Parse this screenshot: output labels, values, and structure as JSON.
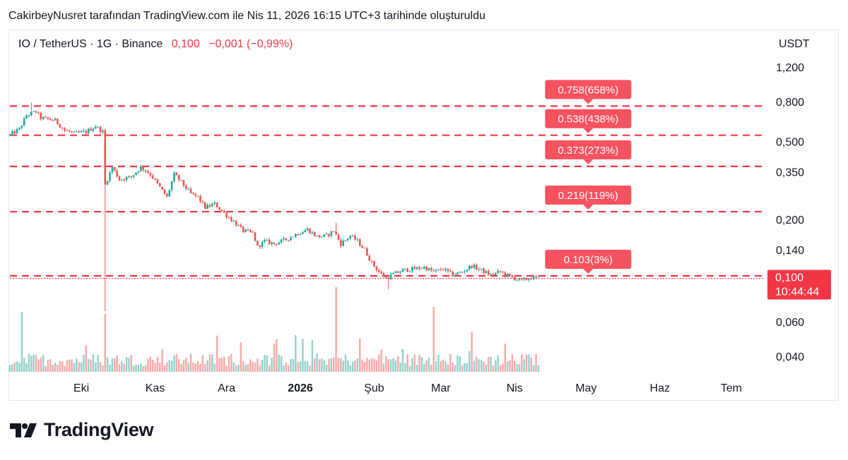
{
  "header": {
    "title": "CakirbeyNusret tarafından TradingView.com ile Nis 11, 2026 16:15 UTC+3 tarihinde oluşturuldu"
  },
  "legend": {
    "symbol": "IO / TetherUS · 1G · Binance",
    "price": "0,100",
    "change": "−0,001 (−0,99%)"
  },
  "axis": {
    "unit": "USDT"
  },
  "current": {
    "price_label": "0,100",
    "countdown": "10:44:44"
  },
  "footer": {
    "brand": "TradingView"
  },
  "colors": {
    "up": "#26a69a",
    "down": "#ef5350",
    "target": "#f23645",
    "label_bg": "#f7525f"
  },
  "chart_data": {
    "type": "candlestick",
    "scale": "log",
    "y_ticks": [
      {
        "label": "1,200",
        "value": 1.2
      },
      {
        "label": "0,800",
        "value": 0.8
      },
      {
        "label": "0,500",
        "value": 0.5
      },
      {
        "label": "0,350",
        "value": 0.35
      },
      {
        "label": "0,200",
        "value": 0.2
      },
      {
        "label": "0,140",
        "value": 0.14
      },
      {
        "label": "0,060",
        "value": 0.06
      },
      {
        "label": "0,040",
        "value": 0.04
      }
    ],
    "x_ticks": [
      {
        "label": "Eki",
        "date": "2025-10-01",
        "bold": false
      },
      {
        "label": "Kas",
        "date": "2025-11-01",
        "bold": false
      },
      {
        "label": "Ara",
        "date": "2025-12-01",
        "bold": false
      },
      {
        "label": "2026",
        "date": "2026-01-01",
        "bold": true
      },
      {
        "label": "Şub",
        "date": "2026-02-01",
        "bold": false
      },
      {
        "label": "Mar",
        "date": "2026-03-01",
        "bold": false
      },
      {
        "label": "Nis",
        "date": "2026-04-01",
        "bold": false
      },
      {
        "label": "May",
        "date": "2026-05-01",
        "bold": false
      },
      {
        "label": "Haz",
        "date": "2026-06-01",
        "bold": false
      },
      {
        "label": "Tem",
        "date": "2026-07-01",
        "bold": false
      }
    ],
    "x_range": [
      "2025-09-01",
      "2026-07-15"
    ],
    "targets": [
      {
        "label": "0.758(658%)",
        "value": 0.758
      },
      {
        "label": "0.538(438%)",
        "value": 0.538
      },
      {
        "label": "0.373(273%)",
        "value": 0.373
      },
      {
        "label": "0.219(119%)",
        "value": 0.219
      },
      {
        "label": "0.103(3%)",
        "value": 0.103
      }
    ],
    "price_path": [
      {
        "date": "2025-09-01",
        "close": 0.54
      },
      {
        "date": "2025-09-05",
        "close": 0.58
      },
      {
        "date": "2025-09-08",
        "close": 0.68
      },
      {
        "date": "2025-09-12",
        "close": 0.71
      },
      {
        "date": "2025-09-14",
        "close": 0.66
      },
      {
        "date": "2025-09-20",
        "close": 0.64
      },
      {
        "date": "2025-09-24",
        "close": 0.57
      },
      {
        "date": "2025-09-28",
        "close": 0.55
      },
      {
        "date": "2025-10-03",
        "close": 0.56
      },
      {
        "date": "2025-10-07",
        "close": 0.6
      },
      {
        "date": "2025-10-10",
        "close": 0.56
      },
      {
        "date": "2025-10-11",
        "close": 0.3
      },
      {
        "date": "2025-10-14",
        "close": 0.37
      },
      {
        "date": "2025-10-17",
        "close": 0.32
      },
      {
        "date": "2025-10-22",
        "close": 0.33
      },
      {
        "date": "2025-10-26",
        "close": 0.37
      },
      {
        "date": "2025-10-30",
        "close": 0.34
      },
      {
        "date": "2025-11-04",
        "close": 0.28
      },
      {
        "date": "2025-11-06",
        "close": 0.26
      },
      {
        "date": "2025-11-09",
        "close": 0.34
      },
      {
        "date": "2025-11-12",
        "close": 0.31
      },
      {
        "date": "2025-11-16",
        "close": 0.27
      },
      {
        "date": "2025-11-19",
        "close": 0.26
      },
      {
        "date": "2025-11-22",
        "close": 0.23
      },
      {
        "date": "2025-11-26",
        "close": 0.24
      },
      {
        "date": "2025-11-30",
        "close": 0.215
      },
      {
        "date": "2025-12-04",
        "close": 0.195
      },
      {
        "date": "2025-12-08",
        "close": 0.175
      },
      {
        "date": "2025-12-12",
        "close": 0.17
      },
      {
        "date": "2025-12-14",
        "close": 0.145
      },
      {
        "date": "2025-12-17",
        "close": 0.155
      },
      {
        "date": "2025-12-21",
        "close": 0.15
      },
      {
        "date": "2025-12-26",
        "close": 0.158
      },
      {
        "date": "2025-12-31",
        "close": 0.17
      },
      {
        "date": "2026-01-04",
        "close": 0.178
      },
      {
        "date": "2026-01-08",
        "close": 0.163
      },
      {
        "date": "2026-01-12",
        "close": 0.165
      },
      {
        "date": "2026-01-15",
        "close": 0.175
      },
      {
        "date": "2026-01-18",
        "close": 0.15
      },
      {
        "date": "2026-01-22",
        "close": 0.165
      },
      {
        "date": "2026-01-25",
        "close": 0.155
      },
      {
        "date": "2026-01-28",
        "close": 0.14
      },
      {
        "date": "2026-01-31",
        "close": 0.12
      },
      {
        "date": "2026-02-03",
        "close": 0.108
      },
      {
        "date": "2026-02-06",
        "close": 0.1
      },
      {
        "date": "2026-02-09",
        "close": 0.105
      },
      {
        "date": "2026-02-13",
        "close": 0.11
      },
      {
        "date": "2026-02-18",
        "close": 0.112
      },
      {
        "date": "2026-02-22",
        "close": 0.114
      },
      {
        "date": "2026-02-26",
        "close": 0.108
      },
      {
        "date": "2026-03-02",
        "close": 0.112
      },
      {
        "date": "2026-03-06",
        "close": 0.104
      },
      {
        "date": "2026-03-10",
        "close": 0.108
      },
      {
        "date": "2026-03-14",
        "close": 0.116
      },
      {
        "date": "2026-03-18",
        "close": 0.11
      },
      {
        "date": "2026-03-22",
        "close": 0.104
      },
      {
        "date": "2026-03-26",
        "close": 0.108
      },
      {
        "date": "2026-03-30",
        "close": 0.102
      },
      {
        "date": "2026-04-04",
        "close": 0.097
      },
      {
        "date": "2026-04-08",
        "close": 0.101
      },
      {
        "date": "2026-04-11",
        "close": 0.1
      }
    ]
  }
}
